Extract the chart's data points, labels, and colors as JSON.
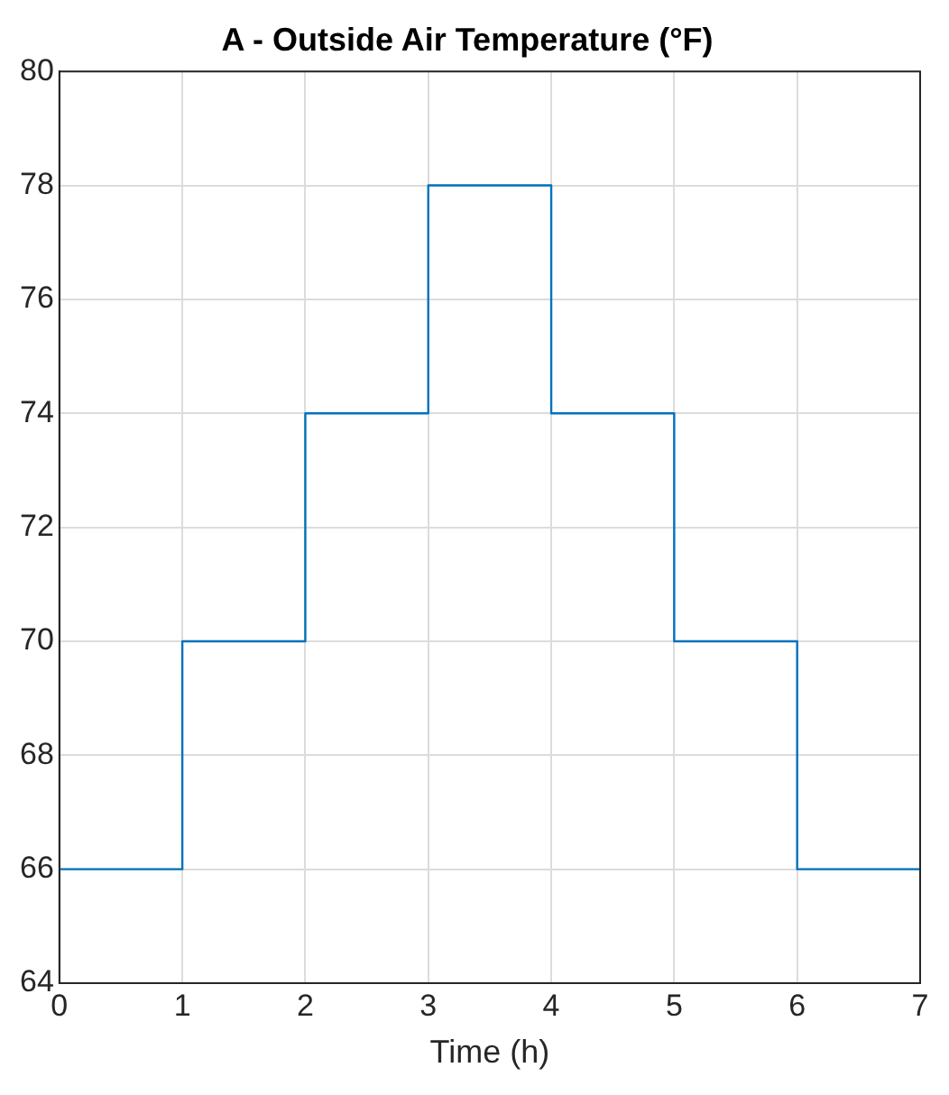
{
  "chart_data": {
    "type": "step",
    "title": "A - Outside Air Temperature (°F)",
    "xlabel": "Time (h)",
    "x": [
      0,
      1,
      2,
      3,
      4,
      5,
      6,
      7
    ],
    "series": [
      {
        "color": "#0072bd",
        "values": [
          66,
          70,
          74,
          78,
          74,
          70,
          66,
          66
        ]
      }
    ],
    "xlim": [
      0,
      7
    ],
    "xticks": [
      0,
      1,
      2,
      3,
      4,
      5,
      6,
      7
    ],
    "ylim": [
      64,
      80
    ],
    "yticks": [
      64,
      66,
      68,
      70,
      72,
      74,
      76,
      78,
      80
    ],
    "grid": true,
    "legend": false
  }
}
